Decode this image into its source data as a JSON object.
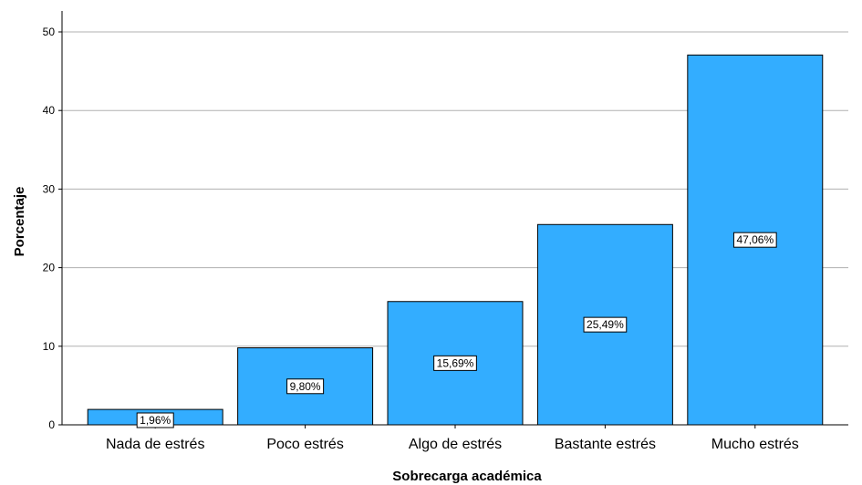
{
  "chart_data": {
    "type": "bar",
    "title": "",
    "xlabel": "Sobrecarga académica",
    "ylabel": "Porcentaje",
    "categories": [
      "Nada de estrés",
      "Poco estrés",
      "Algo de estrés",
      "Bastante estrés",
      "Mucho estrés"
    ],
    "values": [
      1.96,
      9.8,
      15.69,
      25.49,
      47.06
    ],
    "data_labels": [
      "1,96%",
      "9,80%",
      "15,69%",
      "25,49%",
      "47,06%"
    ],
    "ylim": [
      0,
      52
    ],
    "yticks": [
      0,
      10,
      20,
      30,
      40,
      50
    ],
    "ytick_labels": [
      "0",
      "10",
      "20",
      "30",
      "40",
      "50"
    ],
    "grid": true,
    "legend": "none",
    "bar_color": "#33ADFF",
    "bar_edge_color": "#000000",
    "grid_color": "#B0B0B0"
  }
}
